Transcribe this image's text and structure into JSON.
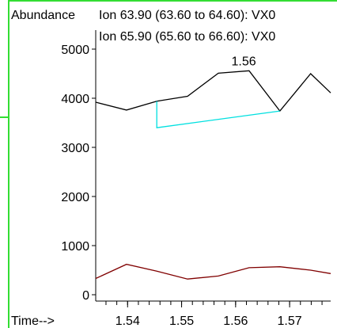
{
  "chart_data": {
    "type": "line",
    "ylabel": "Abundance",
    "xlabel": "Time-->",
    "xlim": [
      1.5341,
      1.5776
    ],
    "ylim": [
      0,
      5200
    ],
    "y_ticks": [
      0,
      1000,
      2000,
      3000,
      4000,
      5000
    ],
    "x_ticks": [
      1.54,
      1.55,
      1.56,
      1.57
    ],
    "x_tick_labels": [
      "1.54",
      "1.55",
      "1.56",
      "1.57"
    ],
    "series": [
      {
        "name": "Ion  63.90 (63.60 to 64.60): VX0",
        "color": "#000000",
        "x": [
          1.5341,
          1.5398,
          1.5454,
          1.5511,
          1.5568,
          1.5625,
          1.5682,
          1.5739,
          1.5776
        ],
        "y": [
          3920,
          3760,
          3940,
          4040,
          4510,
          4560,
          3740,
          4500,
          4110
        ]
      },
      {
        "name": "Ion  65.90 (65.60 to 66.60): VX0",
        "color": "#800000",
        "x": [
          1.5341,
          1.5398,
          1.5454,
          1.5511,
          1.5568,
          1.5625,
          1.5682,
          1.5739,
          1.5776
        ],
        "y": [
          330,
          620,
          480,
          320,
          380,
          550,
          570,
          500,
          430
        ]
      }
    ],
    "baseline": {
      "color": "#00e0e0",
      "x": [
        1.5454,
        1.5454,
        1.5682
      ],
      "y": [
        3940,
        3400,
        3740
      ]
    },
    "annotations": [
      {
        "text": "1.56",
        "x": 1.5615,
        "y": 4670
      }
    ]
  }
}
